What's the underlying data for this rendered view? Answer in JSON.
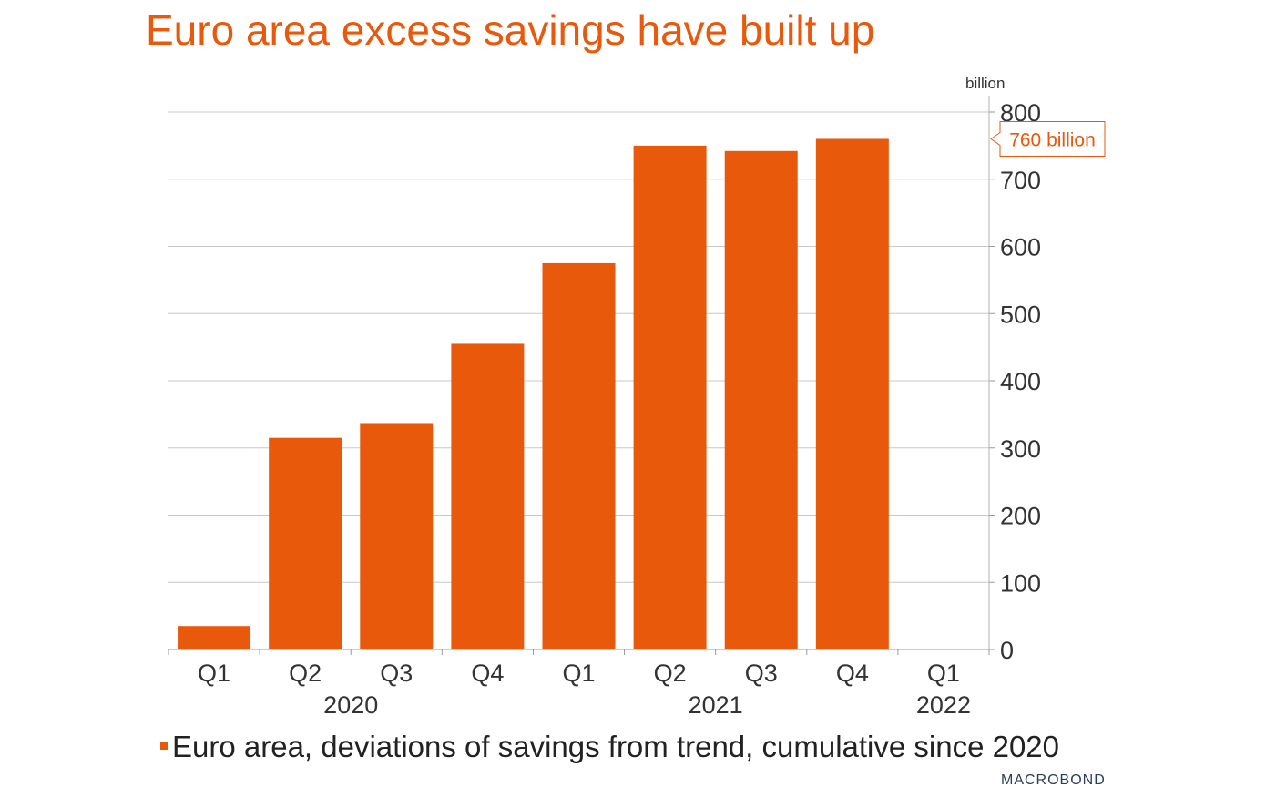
{
  "title": "Euro area excess savings have built up",
  "chart_data": {
    "type": "bar",
    "title": "Euro area excess savings have built up",
    "unit_label": "billion",
    "categories": [
      "Q1",
      "Q2",
      "Q3",
      "Q4",
      "Q1",
      "Q2",
      "Q3",
      "Q4",
      "Q1"
    ],
    "year_labels": [
      {
        "label": "2020",
        "quarters": [
          "Q1",
          "Q2",
          "Q3",
          "Q4"
        ]
      },
      {
        "label": "2021",
        "quarters": [
          "Q1",
          "Q2",
          "Q3",
          "Q4"
        ]
      },
      {
        "label": "2022",
        "quarters": [
          "Q1"
        ]
      }
    ],
    "series": [
      {
        "name": "Euro area, deviations of savings from trend, cumulative since 2020",
        "values": [
          35,
          315,
          337,
          455,
          575,
          750,
          742,
          760,
          null
        ]
      }
    ],
    "ylim": [
      0,
      800
    ],
    "yticks": [
      0,
      100,
      200,
      300,
      400,
      500,
      600,
      700,
      800
    ],
    "y_axis_side": "right",
    "grid": true,
    "annotation": {
      "text": "760 billion",
      "value": 760
    },
    "bar_color": "#e8590c"
  },
  "legend": {
    "text": "Euro area, deviations of savings from trend, cumulative since 2020"
  },
  "logo": {
    "text": "MACROBOND"
  }
}
